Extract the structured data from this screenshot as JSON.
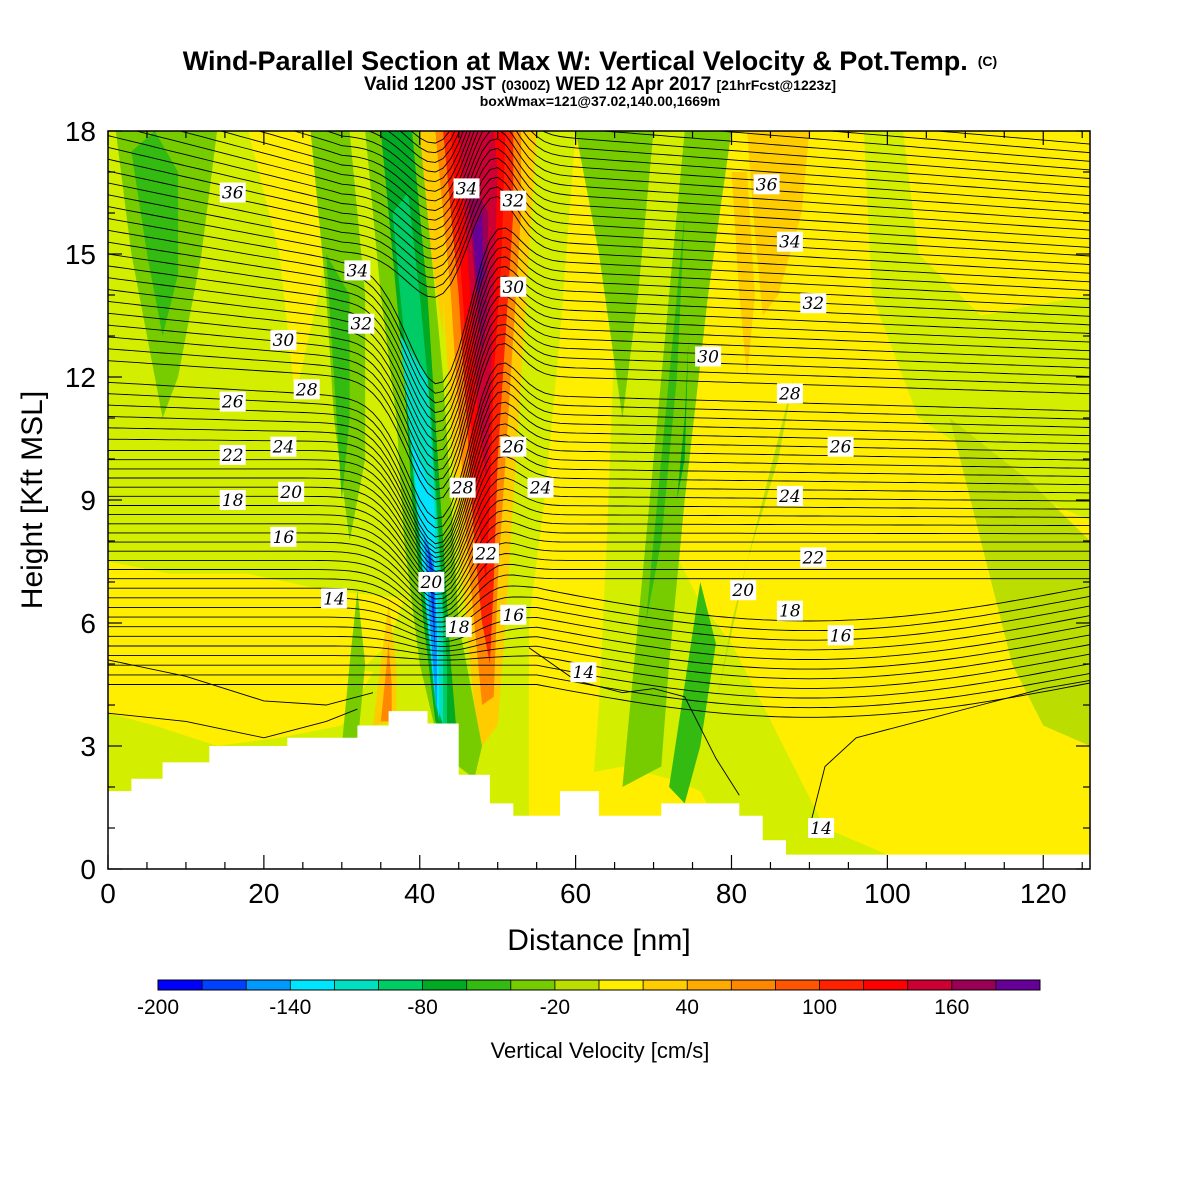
{
  "chart_data": {
    "type": "heatmap",
    "title": "Wind-Parallel Section at Max W: Vertical Velocity & Pot.Temp.",
    "title_mark": "(C)",
    "subtitle_line1": {
      "valid": "Valid 1200 JST",
      "utc": "(0300Z)",
      "date": "WED 12 Apr 2017",
      "fcst": "[21hrFcst@1223z]"
    },
    "subtitle_line2": "boxWmax=121@37.02,140.00,1669m",
    "xlabel": "Distance [nm]",
    "ylabel": "Height [Kft MSL]",
    "xlim": [
      0,
      126
    ],
    "ylim": [
      0,
      18
    ],
    "x_ticks": [
      "0",
      "20",
      "40",
      "60",
      "80",
      "100",
      "120"
    ],
    "y_ticks": [
      "0",
      "3",
      "6",
      "9",
      "12",
      "15",
      "18"
    ],
    "colorbar": {
      "title": "Vertical Velocity [cm/s]",
      "tick_labels": [
        "-200",
        "-140",
        "-80",
        "-20",
        "40",
        "100",
        "160"
      ],
      "levels": [
        -200,
        -180,
        -160,
        -140,
        -120,
        -100,
        -80,
        -60,
        -40,
        -20,
        0,
        20,
        40,
        60,
        80,
        100,
        120,
        140,
        160,
        180,
        200
      ],
      "colors": [
        "#0000ff",
        "#0040ff",
        "#0099ff",
        "#00e5ff",
        "#00e0c0",
        "#00cc66",
        "#00aa22",
        "#33bb11",
        "#77cc00",
        "#bbdd00",
        "#ffee00",
        "#ffcc00",
        "#ffaa00",
        "#ff8800",
        "#ff5500",
        "#ff2200",
        "#ff0000",
        "#cc0033",
        "#990055",
        "#660099"
      ]
    },
    "theta_contour_labels": [
      {
        "text": "36",
        "x": 16,
        "y": 16.5
      },
      {
        "text": "34",
        "x": 32,
        "y": 14.6
      },
      {
        "text": "32",
        "x": 32.5,
        "y": 13.3
      },
      {
        "text": "30",
        "x": 22.5,
        "y": 12.9
      },
      {
        "text": "28",
        "x": 25.5,
        "y": 11.7
      },
      {
        "text": "26",
        "x": 16,
        "y": 11.4
      },
      {
        "text": "24",
        "x": 22.5,
        "y": 10.3
      },
      {
        "text": "22",
        "x": 16,
        "y": 10.1
      },
      {
        "text": "20",
        "x": 23.5,
        "y": 9.2
      },
      {
        "text": "18",
        "x": 16,
        "y": 9.0
      },
      {
        "text": "16",
        "x": 22.5,
        "y": 8.1
      },
      {
        "text": "14",
        "x": 29,
        "y": 6.6
      },
      {
        "text": "34",
        "x": 46,
        "y": 16.6
      },
      {
        "text": "32",
        "x": 52,
        "y": 16.3
      },
      {
        "text": "30",
        "x": 52,
        "y": 14.2
      },
      {
        "text": "26",
        "x": 52,
        "y": 10.3
      },
      {
        "text": "28",
        "x": 45.5,
        "y": 9.3
      },
      {
        "text": "24",
        "x": 55.5,
        "y": 9.3
      },
      {
        "text": "22",
        "x": 48.5,
        "y": 7.7
      },
      {
        "text": "20",
        "x": 41.5,
        "y": 7.0
      },
      {
        "text": "18",
        "x": 45,
        "y": 5.9
      },
      {
        "text": "16",
        "x": 52,
        "y": 6.2
      },
      {
        "text": "14",
        "x": 61,
        "y": 4.8
      },
      {
        "text": "36",
        "x": 84.5,
        "y": 16.7
      },
      {
        "text": "34",
        "x": 87.5,
        "y": 15.3
      },
      {
        "text": "32",
        "x": 90.5,
        "y": 13.8
      },
      {
        "text": "30",
        "x": 77,
        "y": 12.5
      },
      {
        "text": "28",
        "x": 87.5,
        "y": 11.6
      },
      {
        "text": "26",
        "x": 94,
        "y": 10.3
      },
      {
        "text": "24",
        "x": 87.5,
        "y": 9.1
      },
      {
        "text": "22",
        "x": 90.5,
        "y": 7.6
      },
      {
        "text": "20",
        "x": 81.5,
        "y": 6.8
      },
      {
        "text": "18",
        "x": 87.5,
        "y": 6.3
      },
      {
        "text": "16",
        "x": 94,
        "y": 5.7
      },
      {
        "text": "14",
        "x": 91.5,
        "y": 1.0
      }
    ],
    "terrain_profile": [
      [
        0,
        1.9
      ],
      [
        3,
        1.9
      ],
      [
        3,
        2.2
      ],
      [
        7,
        2.2
      ],
      [
        7,
        2.6
      ],
      [
        13,
        2.6
      ],
      [
        13,
        3.0
      ],
      [
        23,
        3.0
      ],
      [
        23,
        3.2
      ],
      [
        32,
        3.2
      ],
      [
        32,
        3.5
      ],
      [
        36,
        3.5
      ],
      [
        36,
        3.85
      ],
      [
        41,
        3.85
      ],
      [
        41,
        3.55
      ],
      [
        45,
        3.55
      ],
      [
        45,
        2.3
      ],
      [
        49,
        2.3
      ],
      [
        49,
        1.6
      ],
      [
        52,
        1.6
      ],
      [
        52,
        1.3
      ],
      [
        58,
        1.3
      ],
      [
        58,
        1.9
      ],
      [
        63,
        1.9
      ],
      [
        63,
        1.3
      ],
      [
        71,
        1.3
      ],
      [
        71,
        1.6
      ],
      [
        81,
        1.6
      ],
      [
        81,
        1.3
      ],
      [
        84,
        1.3
      ],
      [
        84,
        0.7
      ],
      [
        87,
        0.7
      ],
      [
        87,
        0.35
      ],
      [
        126,
        0.35
      ]
    ]
  }
}
